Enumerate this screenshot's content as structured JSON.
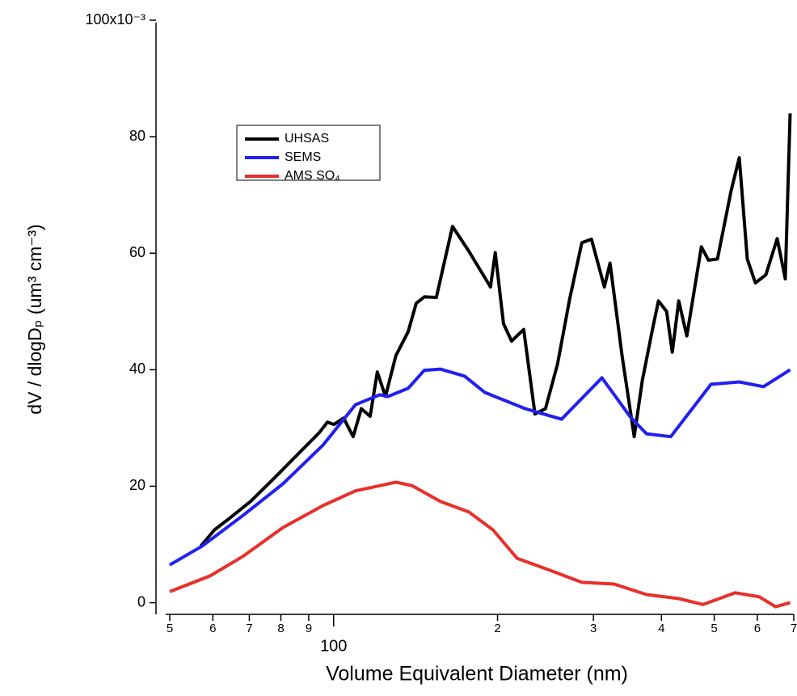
{
  "chart_data": {
    "type": "line",
    "xlabel": "Volume Equivalent Diameter (nm)",
    "ylabel": "dV / dlogDₚ (um³ cm⁻³)",
    "xscale": "log",
    "xlim": [
      50,
      700
    ],
    "ylim": [
      -2,
      100
    ],
    "xticks": [
      {
        "value": 50,
        "label": "5"
      },
      {
        "value": 60,
        "label": "6"
      },
      {
        "value": 70,
        "label": "7"
      },
      {
        "value": 80,
        "label": "8"
      },
      {
        "value": 90,
        "label": "9"
      },
      100,
      {
        "value": 200,
        "label": "2"
      },
      {
        "value": 300,
        "label": "3"
      },
      {
        "value": 400,
        "label": "4"
      },
      {
        "value": 500,
        "label": "5"
      },
      {
        "value": 600,
        "label": "6"
      },
      {
        "value": 700,
        "label": "7"
      }
    ],
    "yticks": [
      0,
      20,
      40,
      60,
      80,
      {
        "value": 100,
        "label": "100x10⁻³"
      }
    ],
    "legend": "upper left",
    "series": [
      {
        "name": "UHSAS",
        "color": "#000000",
        "x": [
          57.0,
          60.4,
          64.6,
          70.4,
          78.0,
          86.4,
          94.1,
          97.4,
          100.1,
          104.3,
          108.6,
          112.4,
          116.7,
          120.3,
          124.5,
          130.1,
          137.0,
          141.8,
          146.7,
          154.4,
          165.3,
          177.0,
          194.1,
          198.1,
          205.1,
          212.2,
          223.4,
          234.3,
          244.9,
          257.8,
          271.3,
          285.6,
          297.5,
          314.2,
          321.8,
          338.7,
          356.5,
          369.0,
          385.7,
          395.0,
          408.8,
          418.7,
          430.3,
          445.3,
          473.6,
          488.0,
          506.9,
          537.2,
          555.9,
          575.1,
          595.1,
          622.2,
          652.6,
          675.4,
          689.4
        ],
        "values": [
          9.7,
          12.5,
          14.6,
          17.4,
          21.5,
          25.7,
          29.2,
          31,
          30.6,
          31.7,
          28.5,
          33.3,
          32,
          39.6,
          35.4,
          42.4,
          46.5,
          51.4,
          52.5,
          52.4,
          64.6,
          60.4,
          54.2,
          60.1,
          47.9,
          44.9,
          46.9,
          32.4,
          33.3,
          41,
          52.1,
          61.8,
          62.4,
          54.2,
          58.3,
          42.4,
          28.5,
          38.2,
          47.2,
          51.8,
          50,
          43,
          51.8,
          45.8,
          61.1,
          58.8,
          59,
          70.8,
          76.4,
          59,
          54.9,
          56.3,
          62.5,
          55.6,
          84
        ]
      },
      {
        "name": "SEMS",
        "color": "#2020f0",
        "x": [
          50,
          57.3,
          68.0,
          80.7,
          95.7,
          109.7,
          121.6,
          125.8,
          137.0,
          146.7,
          157.0,
          174.0,
          189.5,
          224.9,
          262.2,
          311.0,
          350.6,
          375.5,
          416.0,
          493.2,
          555.9,
          615.9,
          689.4
        ],
        "values": [
          6.5,
          9.7,
          14.9,
          20.4,
          27.1,
          34,
          35.7,
          35.4,
          36.8,
          39.9,
          40.1,
          38.9,
          36.1,
          33.3,
          31.5,
          38.6,
          31.9,
          29,
          28.5,
          37.5,
          37.9,
          37.1,
          40
        ]
      },
      {
        "name": "AMS SO₄",
        "color": "#e8302a",
        "x": [
          50,
          59.3,
          68.0,
          80.7,
          95.7,
          109.7,
          121.6,
          130.1,
          139.3,
          157.0,
          177.0,
          196.2,
          217.3,
          249.1,
          285.6,
          327.3,
          375.5,
          430.3,
          476.8,
          546.8,
          605.5,
          648.2,
          689.4
        ],
        "values": [
          1.9,
          4.6,
          7.9,
          12.9,
          16.7,
          19.2,
          20.1,
          20.7,
          20.1,
          17.4,
          15.6,
          12.5,
          7.6,
          5.6,
          3.5,
          3.2,
          1.4,
          0.7,
          -0.3,
          1.7,
          1,
          -0.7,
          0
        ]
      }
    ]
  }
}
